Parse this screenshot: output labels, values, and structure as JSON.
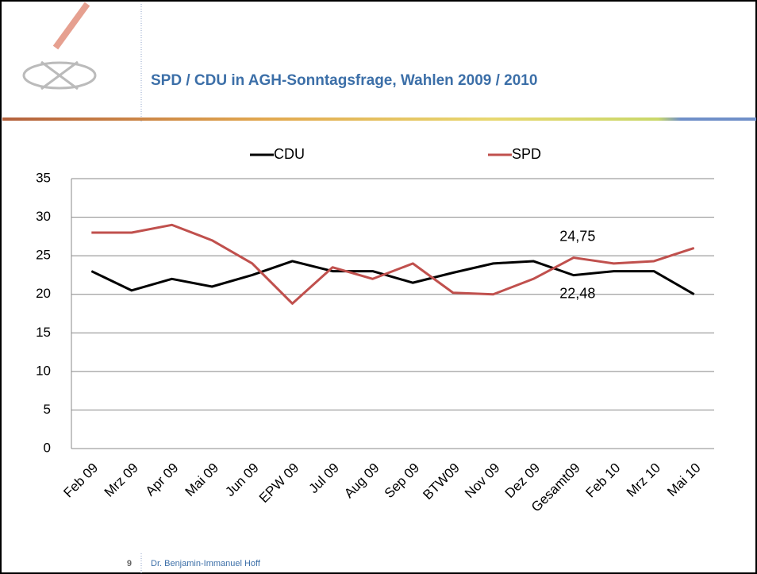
{
  "slide": {
    "number": "9",
    "footer": "Dr. Benjamin-Immanuel Hoff"
  },
  "chart_data": {
    "type": "line",
    "title": "SPD / CDU in AGH-Sonntagsfrage, Wahlen 2009 / 2010",
    "categories": [
      "Feb 09",
      "Mrz 09",
      "Apr 09",
      "Mai 09",
      "Jun 09",
      "EPW 09",
      "Jul 09",
      "Aug 09",
      "Sep 09",
      "BTW09",
      "Nov 09",
      "Dez 09",
      "Gesamt09",
      "Feb 10",
      "Mrz 10",
      "Mai 10"
    ],
    "series": [
      {
        "name": "CDU",
        "color": "#000000",
        "values": [
          23,
          20.5,
          22,
          21,
          22.5,
          24.3,
          23,
          23,
          21.5,
          22.8,
          24,
          24.3,
          22.48,
          23,
          23,
          20
        ],
        "value_labels": [
          null,
          null,
          null,
          null,
          null,
          null,
          null,
          null,
          null,
          null,
          null,
          null,
          "22,48",
          null,
          null,
          null
        ]
      },
      {
        "name": "SPD",
        "color": "#c0504d",
        "values": [
          28,
          28,
          29,
          27,
          24,
          18.8,
          23.5,
          22,
          24,
          20.2,
          20,
          22,
          24.75,
          24,
          24.3,
          26
        ],
        "value_labels": [
          null,
          null,
          null,
          null,
          null,
          null,
          null,
          null,
          null,
          null,
          null,
          null,
          "24,75",
          null,
          null,
          null
        ]
      }
    ],
    "ylim": [
      0,
      35
    ],
    "yticks": [
      0,
      5,
      10,
      15,
      20,
      25,
      30,
      35
    ],
    "grid": true,
    "legend": "top"
  }
}
